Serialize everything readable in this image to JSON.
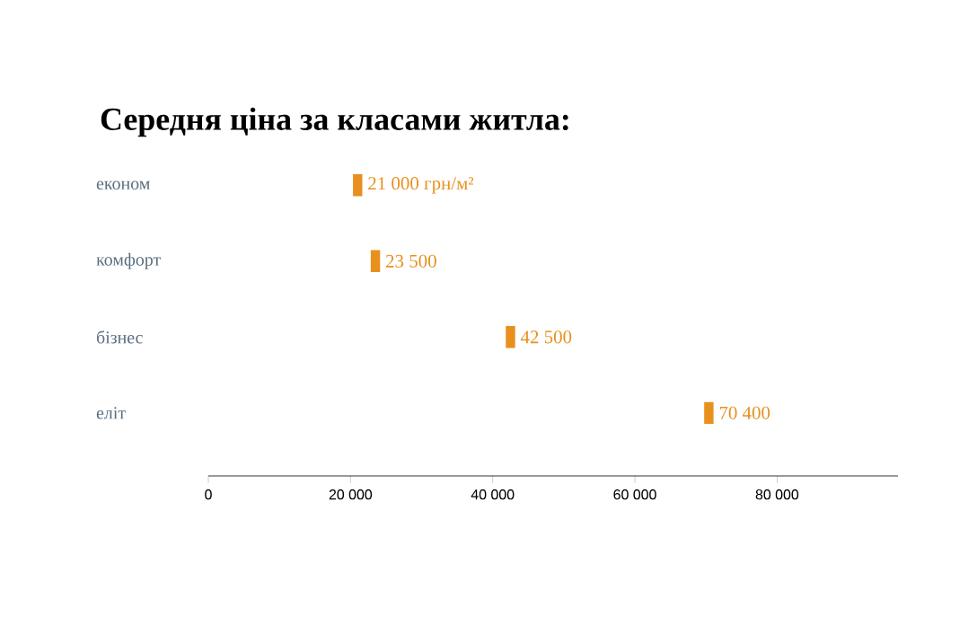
{
  "chart_data": {
    "type": "scatter",
    "title": "Середня ціна за класами житла:",
    "categories": [
      "економ",
      "комфорт",
      "бізнес",
      "еліт"
    ],
    "values": [
      21000,
      23500,
      42500,
      70400
    ],
    "value_labels": [
      "21 000 грн/м²",
      "23 500",
      "42 500",
      "70 400"
    ],
    "color": "#e8901e",
    "orientation": "horizontal",
    "xlim": [
      0,
      97000
    ],
    "xticks": [
      0,
      {
        "value": 20000,
        "label": "20 000"
      },
      {
        "value": 40000,
        "label": "40 000"
      },
      {
        "value": 60000,
        "label": "60 000"
      },
      {
        "value": 80000,
        "label": "80 000"
      }
    ],
    "grid": false
  }
}
